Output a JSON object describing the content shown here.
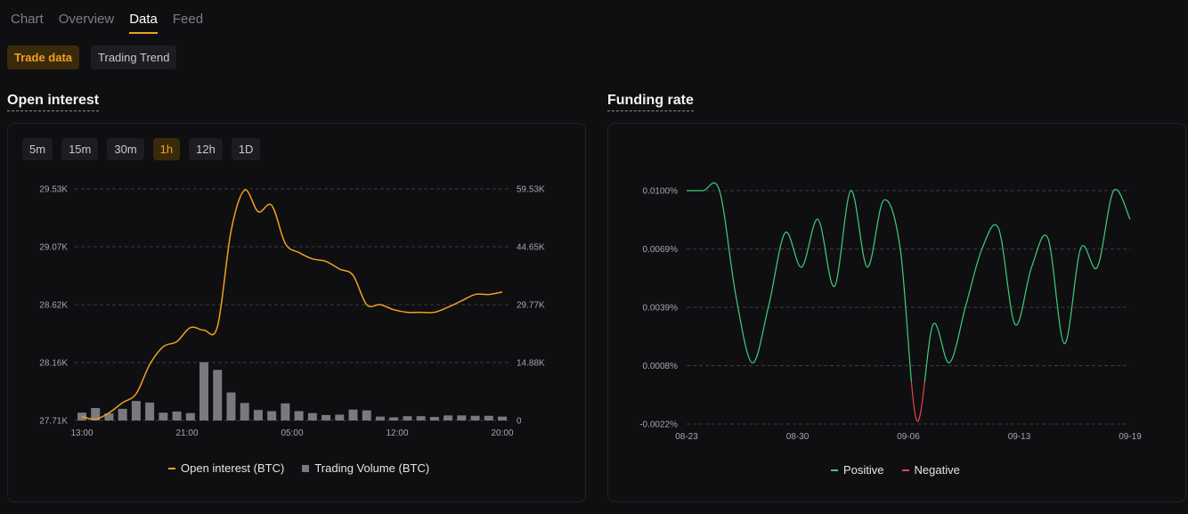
{
  "top_tabs": [
    {
      "label": "Chart",
      "active": false
    },
    {
      "label": "Overview",
      "active": false
    },
    {
      "label": "Data",
      "active": true
    },
    {
      "label": "Feed",
      "active": false
    }
  ],
  "sub_tabs": [
    {
      "label": "Trade data",
      "active": true
    },
    {
      "label": "Trading Trend",
      "active": false
    }
  ],
  "open_interest": {
    "title": "Open interest",
    "intervals": [
      {
        "label": "5m",
        "active": false
      },
      {
        "label": "15m",
        "active": false
      },
      {
        "label": "30m",
        "active": false
      },
      {
        "label": "1h",
        "active": true
      },
      {
        "label": "12h",
        "active": false
      },
      {
        "label": "1D",
        "active": false
      }
    ],
    "legend": {
      "line": "Open interest (BTC)",
      "bar": "Trading Volume (BTC)"
    }
  },
  "funding_rate": {
    "title": "Funding rate",
    "legend": {
      "positive": "Positive",
      "negative": "Negative"
    }
  },
  "colors": {
    "accent": "#f0a020",
    "positive": "#3ecf7a",
    "negative": "#e84545",
    "volume": "#7a7a7e"
  },
  "chart_data": [
    {
      "type": "line",
      "title": "Open interest",
      "x_ticks": [
        "13:00",
        "21:00",
        "05:00",
        "12:00",
        "20:00"
      ],
      "y_left_ticks": [
        "27.71K",
        "28.16K",
        "28.62K",
        "29.07K",
        "29.53K"
      ],
      "y_right_ticks": [
        "0",
        "14.88K",
        "29.77K",
        "44.65K",
        "59.53K"
      ],
      "y_left_range": [
        27710,
        29530
      ],
      "y_right_range": [
        0,
        59530
      ],
      "x": [
        "13:00",
        "14:00",
        "15:00",
        "16:00",
        "17:00",
        "18:00",
        "19:00",
        "20:00",
        "21:00",
        "22:00",
        "23:00",
        "00:00",
        "01:00",
        "02:00",
        "03:00",
        "04:00",
        "05:00",
        "06:00",
        "07:00",
        "08:00",
        "09:00",
        "10:00",
        "11:00",
        "12:00",
        "13:00",
        "14:00",
        "15:00",
        "16:00",
        "17:00",
        "18:00",
        "19:00",
        "20:00"
      ],
      "series": [
        {
          "name": "Open interest (BTC)",
          "axis": "left",
          "values": [
            27740,
            27720,
            27770,
            27850,
            27920,
            28150,
            28290,
            28330,
            28440,
            28420,
            28450,
            29200,
            29520,
            29350,
            29400,
            29100,
            29030,
            28980,
            28960,
            28900,
            28850,
            28620,
            28620,
            28580,
            28560,
            28560,
            28560,
            28600,
            28650,
            28700,
            28700,
            28720
          ]
        },
        {
          "name": "Trading Volume (BTC)",
          "axis": "right",
          "type": "bar",
          "values": [
            2000,
            3200,
            1800,
            3000,
            5000,
            4600,
            2000,
            2300,
            1900,
            15000,
            13000,
            7200,
            4500,
            2700,
            2400,
            4400,
            2400,
            1900,
            1400,
            1500,
            2800,
            2600,
            1000,
            800,
            1100,
            1100,
            900,
            1300,
            1300,
            1200,
            1200,
            1000
          ]
        }
      ]
    },
    {
      "type": "line",
      "title": "Funding rate",
      "x_ticks": [
        "08-23",
        "08-30",
        "09-06",
        "09-13",
        "09-19"
      ],
      "y_ticks": [
        "-0.0022%",
        "0.0008%",
        "0.0039%",
        "0.0069%",
        "0.0100%"
      ],
      "y_range": [
        -0.0022,
        0.01
      ],
      "x": [
        "08-23",
        "08-24",
        "08-25",
        "08-26",
        "08-27",
        "08-28",
        "08-29",
        "08-30",
        "08-31",
        "09-01",
        "09-02",
        "09-03",
        "09-04",
        "09-05",
        "09-06",
        "09-07",
        "09-08",
        "09-09",
        "09-10",
        "09-11",
        "09-12",
        "09-13",
        "09-14",
        "09-15",
        "09-16",
        "09-17",
        "09-18",
        "09-19"
      ],
      "series": [
        {
          "name": "Funding rate",
          "values": [
            0.01,
            0.01,
            0.01,
            0.0045,
            0.001,
            0.004,
            0.0078,
            0.006,
            0.0085,
            0.005,
            0.01,
            0.006,
            0.0095,
            0.007,
            -0.002,
            0.003,
            0.001,
            0.004,
            0.007,
            0.008,
            0.003,
            0.006,
            0.0075,
            0.002,
            0.007,
            0.006,
            0.01,
            0.0085
          ]
        }
      ]
    }
  ]
}
